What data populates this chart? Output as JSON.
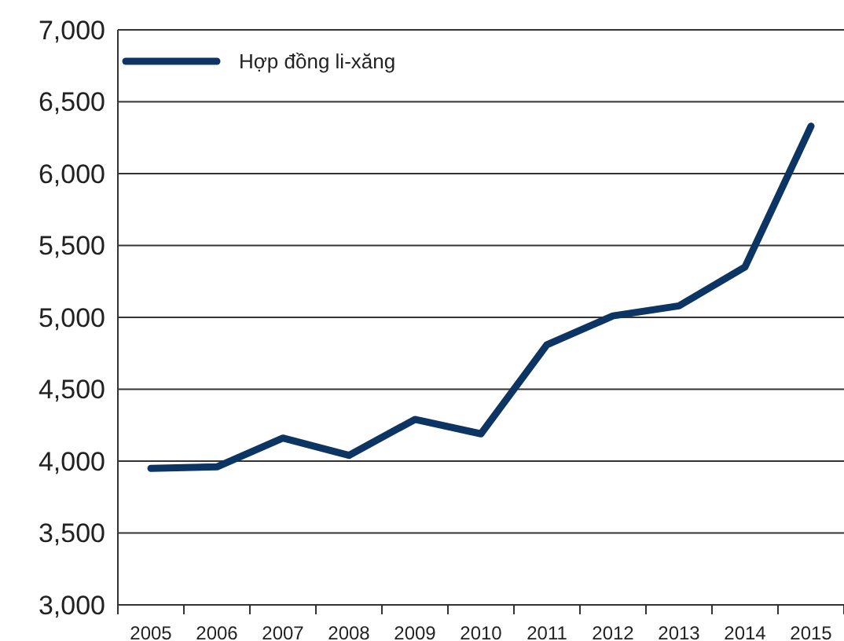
{
  "chart_data": {
    "type": "line",
    "categories": [
      "2005",
      "2006",
      "2007",
      "2008",
      "2009",
      "2010",
      "2011",
      "2012",
      "2013",
      "2014",
      "2015"
    ],
    "series": [
      {
        "name": "Hợp đồng li-xăng",
        "color": "#0d3563",
        "values": [
          3950,
          3960,
          4160,
          4040,
          4290,
          4190,
          4810,
          5010,
          5080,
          5350,
          6330
        ]
      }
    ],
    "ylim": [
      3000,
      7000
    ],
    "yticks": [
      {
        "value": 3000,
        "label": "3,000"
      },
      {
        "value": 3500,
        "label": "3,500"
      },
      {
        "value": 4000,
        "label": "4,000"
      },
      {
        "value": 4500,
        "label": "4,500"
      },
      {
        "value": 5000,
        "label": "5,000"
      },
      {
        "value": 5500,
        "label": "5,500"
      },
      {
        "value": 6000,
        "label": "6,000"
      },
      {
        "value": 6500,
        "label": "6,500"
      },
      {
        "value": 7000,
        "label": "7,000"
      }
    ],
    "grid": "y",
    "legend": "top left",
    "marker": "none",
    "line_style": "solid"
  }
}
